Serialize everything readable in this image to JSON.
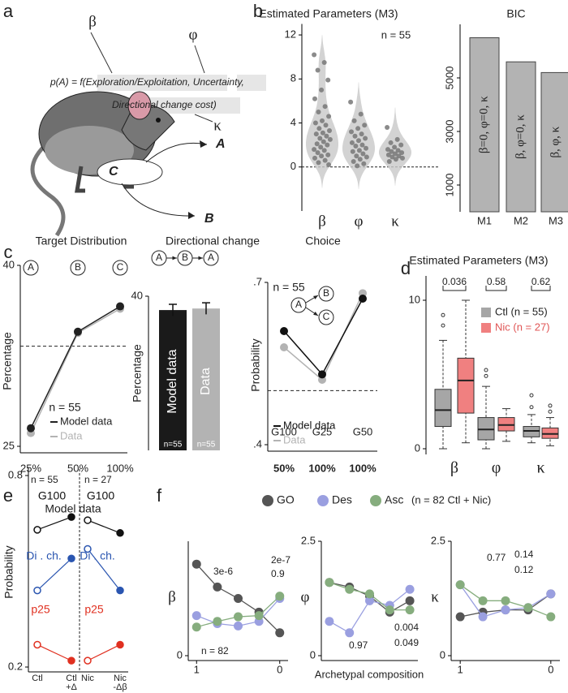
{
  "panel_labels": [
    "a",
    "b",
    "c",
    "d",
    "e",
    "f"
  ],
  "diagram": {
    "beta": "β",
    "phi": "φ",
    "kappa": "κ",
    "formula": [
      "p(A) = f(Exploration/Exploitation, Uncertainty,",
      "Directional change cost)"
    ],
    "choices": [
      "A",
      "B",
      "C"
    ]
  },
  "chart_data": [
    {
      "type": "violin",
      "title": "Estimated Parameters (M3)",
      "annotation": "n = 55",
      "categories": [
        "β",
        "φ",
        "κ"
      ],
      "points": [
        [
          10.2,
          9.5,
          8.8,
          7.9,
          7.0,
          6.2,
          5.5,
          5.0,
          4.6,
          4.2,
          4.0,
          3.8,
          3.5,
          3.3,
          3.1,
          3.0,
          2.8,
          2.6,
          2.5,
          2.3,
          2.1,
          2.0,
          1.8,
          1.6,
          1.5,
          1.3,
          1.1,
          1.0,
          0.8,
          0.6,
          0.4,
          0.2
        ],
        [
          5.9,
          4.8,
          4.2,
          3.8,
          3.5,
          3.2,
          3.0,
          2.8,
          2.6,
          2.4,
          2.2,
          2.0,
          1.9,
          1.7,
          1.5,
          1.4,
          1.2,
          1.0,
          0.9,
          0.7,
          0.5,
          0.3,
          0.1
        ],
        [
          3.6,
          2.5,
          2.2,
          2.0,
          1.8,
          1.6,
          1.5,
          1.4,
          1.3,
          1.2,
          1.1,
          1.0,
          0.9,
          0.8,
          0.7,
          0.5
        ]
      ],
      "ylim": [
        -4,
        13
      ],
      "yticks": [
        0,
        4,
        8,
        12
      ],
      "reference_line": 0,
      "color": "#c8c8c8",
      "point_color": "#777777"
    },
    {
      "type": "bar",
      "title": "BIC",
      "categories": [
        "M1",
        "M2",
        "M3"
      ],
      "values": [
        6500,
        5600,
        5200
      ],
      "bar_labels": [
        "β=0, φ=0, κ",
        "β, φ=0, κ",
        "β, φ, κ"
      ],
      "ylim": [
        0,
        7000
      ],
      "yticks": [
        1000,
        3000,
        5000
      ],
      "color": "#b3b3b3"
    },
    {
      "type": "line",
      "title": "Target Distribution",
      "categories": [
        "25%",
        "50%",
        "100%"
      ],
      "top_labels": [
        "A",
        "B",
        "C"
      ],
      "series": [
        {
          "name": "Model data",
          "color": "#222222",
          "values": [
            26.5,
            34.5,
            36.6
          ]
        },
        {
          "name": "Data",
          "color": "#b3b3b3",
          "values": [
            26.1,
            34.4,
            36.4
          ]
        }
      ],
      "ylim": [
        25,
        40
      ],
      "yticks": [
        25,
        40
      ],
      "ylabel": "Percentage",
      "reference_line": 33.3,
      "annotation": "n = 55"
    },
    {
      "type": "bar",
      "title": "Directional change",
      "sequence": [
        "A",
        "B",
        "A"
      ],
      "categories": [
        "Model data",
        "Data"
      ],
      "values": [
        36.4,
        36.8
      ],
      "errors": [
        1.5,
        1.5
      ],
      "colors": [
        "#1a1a1a",
        "#b3b3b3"
      ],
      "bar_notes": [
        "n=55",
        "n=55"
      ],
      "ylim": [
        0,
        40
      ],
      "yticks": [
        40
      ],
      "ylabel": "Percentage"
    },
    {
      "type": "line",
      "title": "Choice",
      "categories": [
        "G100",
        "G25",
        "G50"
      ],
      "x_labels": [
        "50%",
        "100%",
        "100%"
      ],
      "inset_labels": [
        "A",
        "B",
        "C"
      ],
      "series": [
        {
          "name": "Model data",
          "color": "#111111",
          "values": [
            0.61,
            0.53,
            0.67
          ]
        },
        {
          "name": "Data",
          "color": "#b3b3b3",
          "values": [
            0.58,
            0.52,
            0.68
          ]
        }
      ],
      "ylim": [
        0.4,
        0.7
      ],
      "yticks": [
        {
          "value": 0.4,
          "label": ".4"
        },
        {
          "value": 0.7,
          "label": ".7"
        }
      ],
      "ylabel": "Probability",
      "reference_line": 0.5,
      "annotation": "n = 55"
    },
    {
      "type": "box",
      "title": "Estimated Parameters (M3)",
      "categories": [
        "β",
        "φ",
        "κ"
      ],
      "p_values": [
        0.036,
        0.58,
        0.62
      ],
      "series": [
        {
          "name": "Ctl (n = 55)",
          "color": "#a6a6a6",
          "boxes": [
            {
              "whislo": 0,
              "q1": 1.5,
              "med": 2.6,
              "q3": 4.0,
              "whishi": 7.3,
              "fliers": [
                8.3,
                9.0
              ]
            },
            {
              "whislo": 0,
              "q1": 0.6,
              "med": 1.3,
              "q3": 2.1,
              "whishi": 4.2,
              "fliers": [
                4.9,
                5.3
              ]
            },
            {
              "whislo": 0.4,
              "q1": 0.8,
              "med": 1.2,
              "q3": 1.5,
              "whishi": 2.3,
              "fliers": [
                2.8,
                3.6
              ]
            }
          ]
        },
        {
          "name": "Nic (n = 27)",
          "color": "#f08080",
          "boxes": [
            {
              "whislo": 0.4,
              "q1": 2.4,
              "med": 4.6,
              "q3": 6.1,
              "whishi": 10,
              "fliers": []
            },
            {
              "whislo": 0.5,
              "q1": 1.2,
              "med": 1.6,
              "q3": 2.1,
              "whishi": 2.7,
              "fliers": []
            },
            {
              "whislo": 0.2,
              "q1": 0.7,
              "med": 1.0,
              "q3": 1.4,
              "whishi": 2.1,
              "fliers": [
                2.5,
                2.9
              ]
            }
          ]
        }
      ],
      "ylim": [
        0,
        10
      ],
      "yticks": [
        0,
        10
      ]
    },
    {
      "type": "slope",
      "title": "Model data",
      "ylabel": "Probability",
      "ylim": [
        0.2,
        0.8
      ],
      "yticks": [
        0.2,
        0.8
      ],
      "panels": [
        {
          "annotation": "n = 55",
          "categories": [
            [
              "Ctl"
            ],
            [
              "Ctl",
              "+Δ"
            ]
          ]
        },
        {
          "annotation": "n = 27",
          "categories": [
            [
              "Nic"
            ],
            [
              "Nic",
              "-Δβ"
            ]
          ]
        }
      ],
      "series": [
        {
          "name": "G100",
          "color": "#111111",
          "values": [
            [
              0.63,
              0.67
            ],
            [
              0.66,
              0.62
            ]
          ]
        },
        {
          "name": "Di . ch.",
          "color": "#2a55b0",
          "values": [
            [
              0.44,
              0.54
            ],
            [
              0.57,
              0.44
            ]
          ]
        },
        {
          "name": "p25",
          "color": "#e03020",
          "values": [
            [
              0.27,
              0.22
            ],
            [
              0.22,
              0.27
            ]
          ]
        }
      ]
    },
    {
      "type": "multi_line",
      "legend_note": "(n = 82 Ctl + Nic)",
      "xlabel": "Archetypal composition",
      "x": [
        1,
        0.75,
        0.5,
        0.25,
        0
      ],
      "xlim": [
        1.1,
        -0.1
      ],
      "xticks": [
        1,
        0
      ],
      "series": [
        {
          "name": "GO",
          "color": "#555555"
        },
        {
          "name": "Des",
          "color": "#9a9fe0"
        },
        {
          "name": "Asc",
          "color": "#86ad7e"
        }
      ],
      "panels": [
        {
          "ylabel": "β",
          "ylim": [
            0,
            10
          ],
          "yticks": [
            0
          ],
          "values": [
            [
              8.0,
              6.0,
              5.0,
              3.8,
              2.0
            ],
            [
              3.5,
              2.8,
              2.6,
              3.0,
              5.0
            ],
            [
              2.5,
              3.0,
              3.4,
              3.5,
              5.2
            ]
          ],
          "annotations": [
            "3e-6",
            "2e-7",
            "0.9",
            "n = 82"
          ]
        },
        {
          "ylabel": "φ",
          "ylim": [
            0,
            2.5
          ],
          "yticks": [
            0,
            2.5
          ],
          "values": [
            [
              1.6,
              1.5,
              1.3,
              0.95,
              1.2
            ],
            [
              0.75,
              0.5,
              1.2,
              1.1,
              1.45
            ],
            [
              1.6,
              1.45,
              1.35,
              1.0,
              1.0
            ]
          ],
          "annotations": [
            "0.97",
            "0.004",
            "0.049"
          ]
        },
        {
          "ylabel": "κ",
          "ylim": [
            0,
            2.5
          ],
          "yticks": [
            0,
            2.5
          ],
          "values": [
            [
              0.85,
              0.95,
              1.0,
              1.0,
              1.35
            ],
            [
              1.55,
              0.85,
              1.0,
              1.05,
              1.35
            ],
            [
              1.55,
              1.2,
              1.2,
              1.05,
              0.85
            ]
          ],
          "annotations": [
            "0.77",
            "0.14",
            "0.12"
          ]
        }
      ]
    }
  ]
}
